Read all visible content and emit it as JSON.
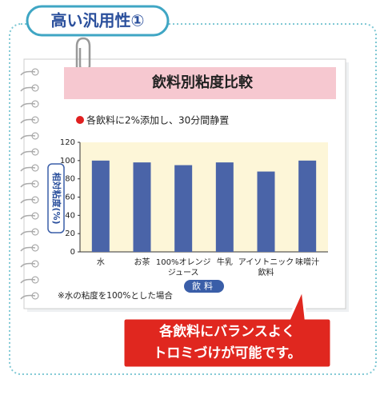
{
  "chart_data": {
    "type": "bar",
    "header": "高い汎用性①",
    "title": "飲料別粘度比較",
    "subtitle": "各飲料に2%添加し、30分間静置",
    "y_label": "相対粘度(%)",
    "x_label": "飲料",
    "note": "※水の粘度を100%とした場合",
    "callout": [
      "各飲料にバランスよく",
      "トロミづけが可能です。"
    ],
    "categories": [
      [
        "水"
      ],
      [
        "お茶"
      ],
      [
        "100%オレンジ",
        "ジュース"
      ],
      [
        "牛乳"
      ],
      [
        "アイソトニック",
        "飲料"
      ],
      [
        "味噌汁"
      ]
    ],
    "values": [
      100,
      98,
      95,
      98,
      88,
      100
    ],
    "color": "#4a64a8",
    "ylim": [
      0,
      120
    ],
    "yticks": [
      0,
      20,
      40,
      60,
      80,
      100,
      120
    ],
    "grid": false
  }
}
